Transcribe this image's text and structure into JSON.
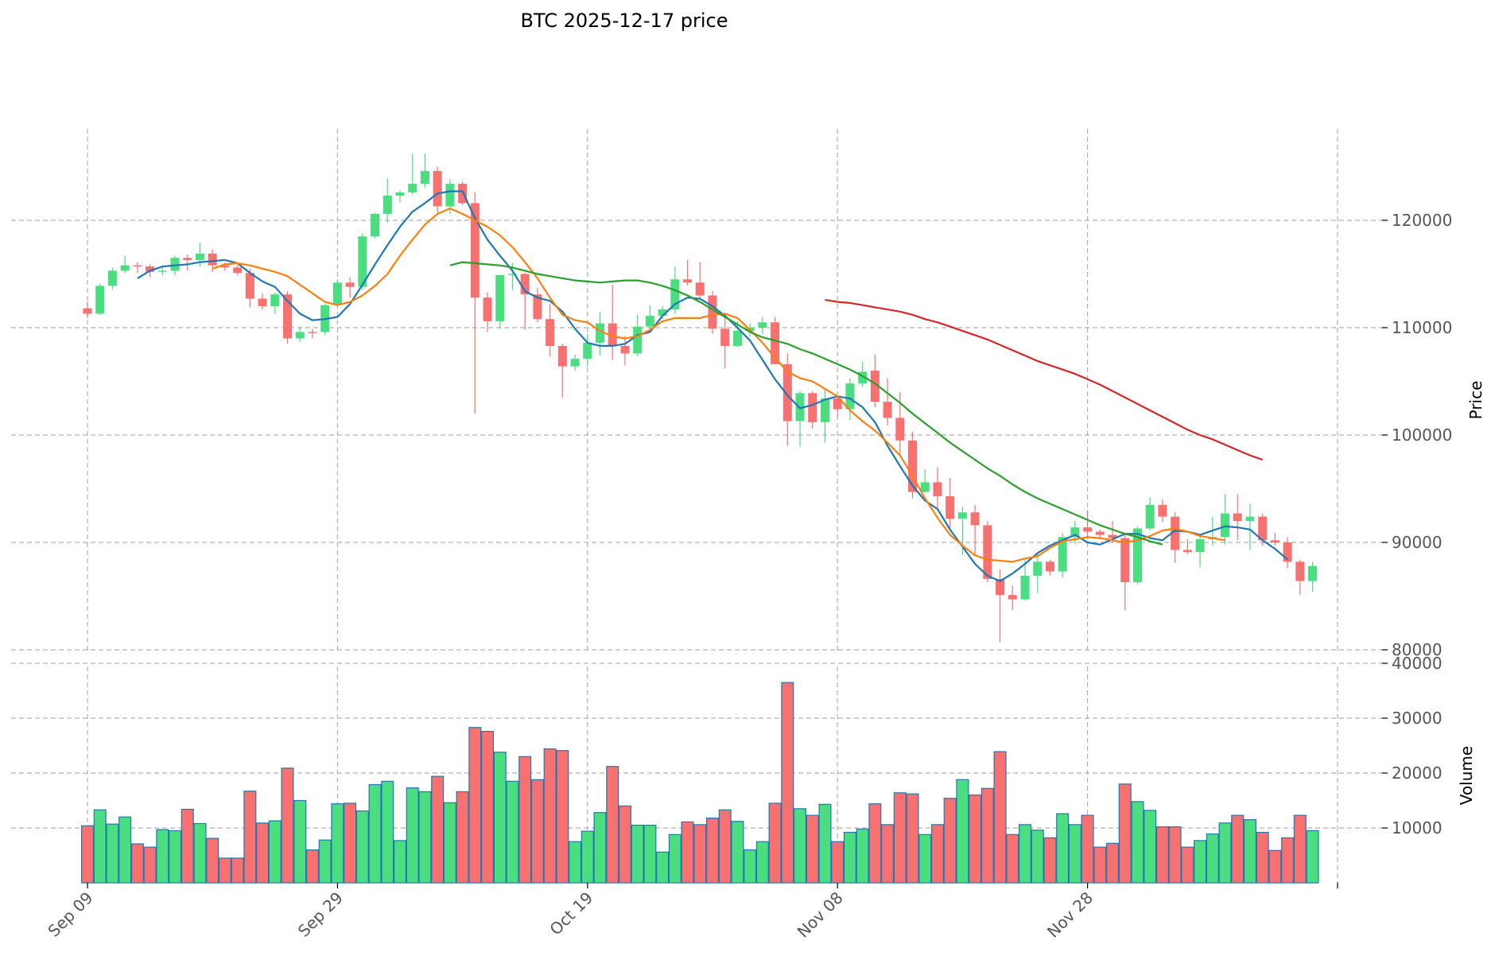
{
  "title": "BTC  2025-12-17  price",
  "colors": {
    "up": "#4ade80",
    "down": "#f87171",
    "vol_edge": "#1f77b4",
    "ma7": "#1f77b4",
    "ma14": "#ff7f0e",
    "ma30": "#2ca02c",
    "ma60": "#d62728"
  },
  "chart_data": {
    "type": "candlestick",
    "title": "BTC  2025-12-17  price",
    "price_axis": {
      "label": "Price",
      "ylim": [
        80000,
        130000
      ],
      "ticks": [
        80000,
        90000,
        100000,
        110000,
        120000
      ],
      "tick_labels": [
        "80000",
        "90000",
        "100000",
        "110000",
        "120000"
      ]
    },
    "volume_axis": {
      "label": "Volume",
      "ylim": [
        0,
        40000
      ],
      "ticks": [
        10000,
        20000,
        30000,
        40000
      ],
      "tick_labels": [
        "10000",
        "20000",
        "30000",
        "40000"
      ]
    },
    "x_ticks": [
      {
        "index": 0,
        "label": "Sep 09"
      },
      {
        "index": 20,
        "label": "Sep 29"
      },
      {
        "index": 40,
        "label": "Oct 19"
      },
      {
        "index": 60,
        "label": "Nov 08"
      },
      {
        "index": 80,
        "label": "Nov 28"
      },
      {
        "index": 100,
        "label": ""
      }
    ],
    "grid": true,
    "ohlc": [
      [
        111800,
        112400,
        110900,
        111300
      ],
      [
        111300,
        114100,
        111200,
        113900
      ],
      [
        113900,
        115600,
        113600,
        115300
      ],
      [
        115300,
        116700,
        115100,
        115800
      ],
      [
        115800,
        116100,
        115100,
        115700
      ],
      [
        115700,
        115900,
        114700,
        115200
      ],
      [
        115200,
        115700,
        114900,
        115300
      ],
      [
        115300,
        116700,
        114900,
        116500
      ],
      [
        116500,
        116800,
        115300,
        116300
      ],
      [
        116300,
        117900,
        115700,
        116900
      ],
      [
        116900,
        117300,
        115200,
        115800
      ],
      [
        115800,
        116100,
        115300,
        115600
      ],
      [
        115600,
        115800,
        114900,
        115100
      ],
      [
        115100,
        115500,
        111900,
        112700
      ],
      [
        112700,
        113200,
        111700,
        112000
      ],
      [
        112000,
        113300,
        111300,
        113100
      ],
      [
        113100,
        113400,
        108500,
        109000
      ],
      [
        109000,
        110100,
        108700,
        109600
      ],
      [
        109600,
        109900,
        109000,
        109500
      ],
      [
        109600,
        112200,
        109300,
        112100
      ],
      [
        112100,
        114500,
        111900,
        114200
      ],
      [
        114200,
        114700,
        112800,
        113800
      ],
      [
        113800,
        118800,
        113500,
        118500
      ],
      [
        118500,
        120700,
        118300,
        120600
      ],
      [
        120600,
        123900,
        119800,
        122300
      ],
      [
        122300,
        122800,
        121700,
        122600
      ],
      [
        122600,
        126200,
        122400,
        123400
      ],
      [
        123400,
        126200,
        123000,
        124600
      ],
      [
        124600,
        125000,
        120600,
        121300
      ],
      [
        121300,
        123800,
        120600,
        123400
      ],
      [
        123400,
        123600,
        121400,
        121600
      ],
      [
        121600,
        122600,
        102000,
        112800
      ],
      [
        112800,
        113300,
        109600,
        110600
      ],
      [
        110600,
        114900,
        109900,
        114900
      ],
      [
        114900,
        116000,
        113500,
        115000
      ],
      [
        115000,
        115100,
        109800,
        113100
      ],
      [
        113100,
        113700,
        110500,
        110800
      ],
      [
        110800,
        112200,
        107300,
        108300
      ],
      [
        108300,
        108500,
        103500,
        106400
      ],
      [
        106400,
        107500,
        106000,
        107100
      ],
      [
        107100,
        109400,
        106400,
        108600
      ],
      [
        108600,
        111500,
        107400,
        110400
      ],
      [
        110400,
        114000,
        107000,
        108300
      ],
      [
        108300,
        109200,
        106500,
        107600
      ],
      [
        107600,
        111200,
        107300,
        110100
      ],
      [
        110100,
        112100,
        109900,
        111100
      ],
      [
        111100,
        112000,
        110800,
        111700
      ],
      [
        111700,
        115700,
        111300,
        114500
      ],
      [
        114500,
        116300,
        113900,
        114200
      ],
      [
        114200,
        116100,
        112800,
        113000
      ],
      [
        113000,
        113400,
        109400,
        109900
      ],
      [
        109900,
        111100,
        106200,
        108300
      ],
      [
        108300,
        110600,
        108200,
        109700
      ],
      [
        109700,
        110400,
        109200,
        110000
      ],
      [
        110000,
        111000,
        109400,
        110500
      ],
      [
        110500,
        111000,
        107000,
        106600
      ],
      [
        106600,
        107600,
        99000,
        101300
      ],
      [
        101300,
        104100,
        98900,
        103900
      ],
      [
        103900,
        104100,
        100600,
        101200
      ],
      [
        101200,
        104200,
        99300,
        103400
      ],
      [
        103400,
        103700,
        101700,
        102400
      ],
      [
        102400,
        105300,
        101400,
        104800
      ],
      [
        104800,
        106800,
        104500,
        105900
      ],
      [
        106000,
        107500,
        102600,
        103100
      ],
      [
        103100,
        105300,
        100900,
        101600
      ],
      [
        101600,
        104000,
        98100,
        99500
      ],
      [
        99500,
        100300,
        94100,
        94700
      ],
      [
        94700,
        96800,
        94600,
        95600
      ],
      [
        95600,
        97000,
        93000,
        94300
      ],
      [
        94300,
        96000,
        91200,
        92200
      ],
      [
        92200,
        93300,
        88800,
        92800
      ],
      [
        92800,
        93500,
        88700,
        91600
      ],
      [
        91600,
        92000,
        86300,
        86600
      ],
      [
        86600,
        87500,
        80700,
        85100
      ],
      [
        85100,
        86000,
        83700,
        84700
      ],
      [
        84700,
        88400,
        84600,
        86900
      ],
      [
        86900,
        89000,
        85300,
        88200
      ],
      [
        88200,
        88400,
        86900,
        87300
      ],
      [
        87300,
        90900,
        86700,
        90500
      ],
      [
        90500,
        92000,
        89800,
        91400
      ],
      [
        91400,
        93000,
        90300,
        91000
      ],
      [
        91000,
        91200,
        90300,
        90700
      ],
      [
        90700,
        92000,
        90000,
        90400
      ],
      [
        90400,
        90900,
        83700,
        86300
      ],
      [
        86300,
        91500,
        86100,
        91300
      ],
      [
        91300,
        94200,
        91100,
        93500
      ],
      [
        93500,
        94000,
        91900,
        92400
      ],
      [
        92400,
        92800,
        88100,
        89300
      ],
      [
        89300,
        90300,
        88900,
        89100
      ],
      [
        89100,
        90600,
        87700,
        90300
      ],
      [
        90300,
        92400,
        89700,
        90500
      ],
      [
        90500,
        94500,
        89800,
        92700
      ],
      [
        92700,
        94500,
        90200,
        92000
      ],
      [
        92000,
        93600,
        89300,
        92400
      ],
      [
        92400,
        92700,
        89700,
        90200
      ],
      [
        90200,
        90900,
        89700,
        90000
      ],
      [
        90000,
        90500,
        87600,
        88200
      ],
      [
        88200,
        88400,
        85100,
        86400
      ],
      [
        86400,
        88200,
        85400,
        87800
      ]
    ],
    "volume": [
      10400,
      13300,
      10700,
      12000,
      7100,
      6500,
      9700,
      9500,
      13400,
      10800,
      8100,
      4500,
      4500,
      16700,
      10900,
      11300,
      20900,
      15000,
      6000,
      7800,
      14400,
      14500,
      13100,
      17900,
      18500,
      7700,
      17300,
      16600,
      19400,
      14600,
      16600,
      28300,
      27600,
      23800,
      18500,
      23000,
      18800,
      24400,
      24100,
      7500,
      9400,
      12800,
      21200,
      14000,
      10500,
      10500,
      5600,
      8800,
      11100,
      10600,
      11800,
      13300,
      11200,
      6000,
      7500,
      14500,
      36500,
      13500,
      12300,
      14300,
      7500,
      9200,
      9800,
      14400,
      10600,
      16400,
      16200,
      8800,
      10600,
      15400,
      18800,
      16000,
      17200,
      23900,
      8800,
      10600,
      9600,
      8200,
      12600,
      10600,
      12300,
      6500,
      7200,
      18000,
      14800,
      13200,
      10200,
      10200,
      6500,
      7700,
      8900,
      10900,
      12300,
      11500,
      9200,
      5900,
      8200,
      12300,
      9500
    ],
    "vol_colors_override": {
      "2": "up"
    },
    "ma7": {
      "start": 4,
      "values": [
        114600,
        115300,
        115700,
        115800,
        115900,
        116100,
        116200,
        116300,
        116000,
        115100,
        114300,
        113800,
        112500,
        111300,
        110700,
        110800,
        111000,
        112200,
        114000,
        115900,
        117700,
        119400,
        120800,
        121600,
        122500,
        122700,
        122700,
        120200,
        118200,
        116700,
        115300,
        113400,
        112800,
        112500,
        111500,
        109900,
        108600,
        108300,
        108300,
        108500,
        109300,
        109600,
        111100,
        112200,
        112800,
        112700,
        112000,
        111100,
        110000,
        108800,
        107000,
        105200,
        103700,
        102500,
        102800,
        103300,
        103600,
        103400,
        102600,
        101200,
        99000,
        97100,
        95300,
        93900,
        93100,
        91200,
        89600,
        88000,
        86900,
        86400,
        87100,
        88000,
        89000,
        89700,
        90200,
        90700,
        90000,
        89800,
        90300,
        90800,
        90800,
        90400,
        90200,
        91100,
        91000,
        90700,
        91100,
        91500,
        91400,
        91200,
        90200,
        89400,
        88400
      ]
    },
    "ma14": {
      "start": 10,
      "values": [
        115500,
        115900,
        116000,
        115800,
        115500,
        115200,
        114800,
        114000,
        113200,
        112400,
        112100,
        112400,
        113000,
        113900,
        115000,
        116700,
        118200,
        119600,
        120600,
        121100,
        120600,
        120000,
        119400,
        118600,
        117500,
        116100,
        114600,
        112800,
        111200,
        110700,
        110500,
        109700,
        109200,
        109000,
        109200,
        109800,
        110600,
        110900,
        110900,
        110900,
        111200,
        111300,
        110900,
        109800,
        108600,
        107200,
        105900,
        105300,
        105000,
        104300,
        103600,
        102300,
        101300,
        100400,
        99300,
        98100,
        96200,
        94100,
        92300,
        90700,
        89700,
        88800,
        88400,
        88300,
        88200,
        88500,
        88700,
        89500,
        90100,
        90300,
        90500,
        90400,
        90200,
        90000,
        90200,
        90600,
        91100,
        91300,
        91000,
        90600,
        90400,
        90200
      ]
    },
    "ma30": {
      "start": 29,
      "values": [
        115800,
        116100,
        116000,
        115900,
        115800,
        115600,
        115300,
        115000,
        114800,
        114600,
        114400,
        114300,
        114200,
        114300,
        114400,
        114400,
        114200,
        113900,
        113500,
        113000,
        112400,
        111700,
        111000,
        110300,
        109600,
        109100,
        108800,
        108500,
        108000,
        107600,
        107100,
        106600,
        106100,
        105500,
        104800,
        103900,
        103000,
        102000,
        101100,
        100200,
        99300,
        98500,
        97700,
        96900,
        96200,
        95400,
        94700,
        94100,
        93600,
        93100,
        92600,
        92100,
        91600,
        91200,
        90800,
        90500,
        90100,
        89800
      ]
    },
    "ma60": {
      "start": 59,
      "values": [
        112600,
        112400,
        112300,
        112100,
        111900,
        111700,
        111500,
        111200,
        110800,
        110500,
        110100,
        109700,
        109300,
        108900,
        108400,
        107900,
        107400,
        106900,
        106500,
        106100,
        105700,
        105200,
        104700,
        104100,
        103500,
        102900,
        102300,
        101700,
        101100,
        100500,
        100000,
        99600,
        99100,
        98600,
        98100,
        97700
      ]
    }
  }
}
